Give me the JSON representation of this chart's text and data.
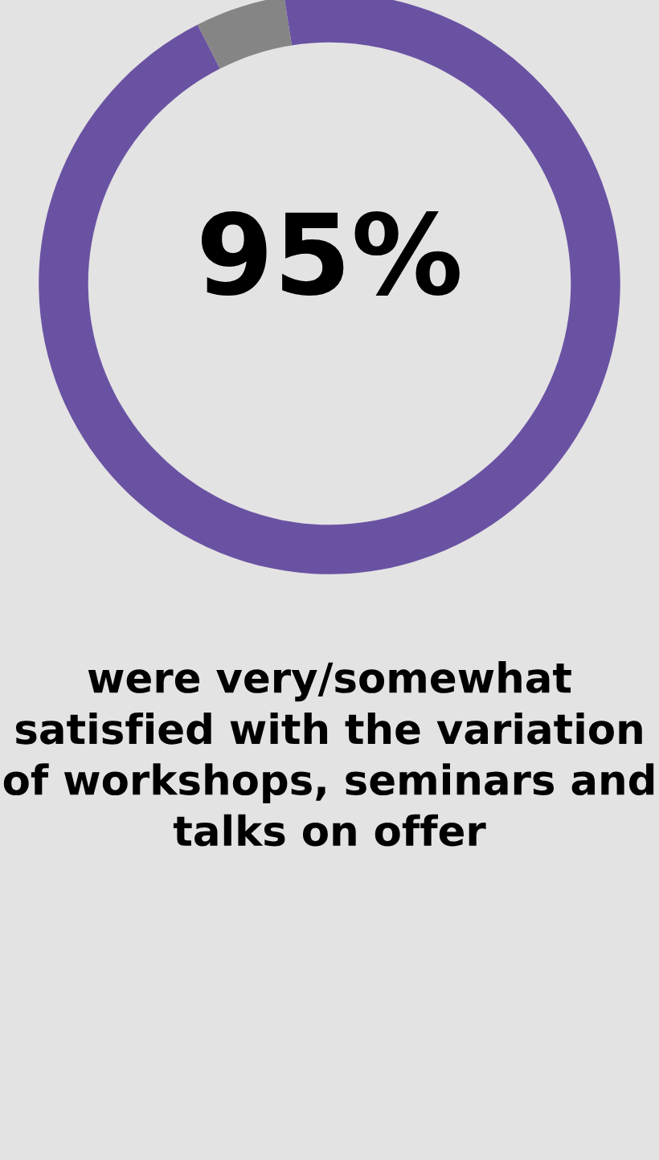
{
  "chart_data": {
    "type": "donut",
    "categories": [
      null,
      null
    ],
    "values": [
      95,
      5
    ],
    "colors": [
      "#6a52a3",
      "#858585"
    ],
    "value_labels": [
      "95%",
      null
    ],
    "annotations": [
      "were very/somewhat satisfied with the variation of workshops, seminars and talks on offer"
    ]
  }
}
